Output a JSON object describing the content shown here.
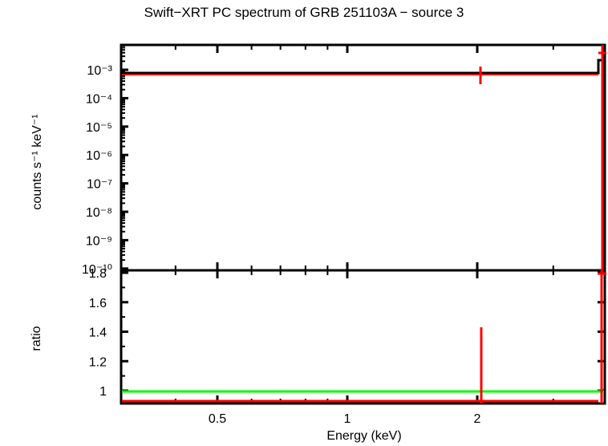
{
  "chart_data": [
    {
      "panel": "top",
      "type": "line",
      "title": "Swift-XRT PC spectrum of GRB 251103A - source 3",
      "xlabel": "Energy (keV)",
      "ylabel": "counts s^-1 keV^-1",
      "xscale": "log",
      "yscale": "log",
      "xlim": [
        0.3,
        10
      ],
      "ylim": [
        1e-10,
        0.008
      ],
      "ytick_labels": [
        "10^-3",
        "10^-4",
        "10^-5",
        "10^-6",
        "10^-7",
        "10^-8",
        "10^-9",
        "10^-10"
      ],
      "ytick_values": [
        0.001,
        0.0001,
        1e-05,
        1e-06,
        1e-07,
        1e-08,
        1e-09,
        1e-10
      ],
      "series": [
        {
          "name": "data",
          "color": "#ff0000",
          "points": [
            {
              "x": 2.0,
              "y": 0.00075,
              "xerr_low": 1.7,
              "xerr_high": 8.9,
              "yerr": [
                0.0005,
                0.0011
              ]
            },
            {
              "x": 9.5,
              "y": 0.004,
              "note": "last bin at plot edge"
            }
          ]
        },
        {
          "name": "model",
          "color": "#000000",
          "step": [
            {
              "x0": 0.3,
              "x1": 9.0,
              "y": 0.00078
            },
            {
              "x0": 9.0,
              "x1": 10.0,
              "y": 0.002
            }
          ]
        }
      ],
      "grid": false,
      "legend": null
    },
    {
      "panel": "bottom",
      "type": "line",
      "xlabel": "Energy (keV)",
      "ylabel": "ratio",
      "xscale": "log",
      "xlim": [
        0.3,
        10
      ],
      "ylim": [
        0.92,
        1.8
      ],
      "ytick_labels": [
        "1",
        "1.2",
        "1.4",
        "1.6",
        "1.8"
      ],
      "ytick_values": [
        1,
        1.2,
        1.4,
        1.6,
        1.8
      ],
      "xtick_labels": [
        "0.5",
        "1",
        "2"
      ],
      "xtick_values": [
        0.5,
        1,
        2
      ],
      "series": [
        {
          "name": "unity",
          "color": "#00ff00",
          "y": 1.0
        },
        {
          "name": "ratio",
          "color": "#ff0000",
          "points": [
            {
              "x": 2.0,
              "y": 0.93,
              "yerr": [
                0.93,
                1.42
              ]
            },
            {
              "x": 9.5,
              "y": 0.93,
              "yerr": [
                0.93,
                1.8
              ]
            }
          ]
        }
      ],
      "grid": false
    }
  ],
  "labels": {
    "title": "Swift−XRT PC spectrum of GRB 251103A − source 3",
    "ylabel_top": "counts s⁻¹ keV⁻¹",
    "ylabel_bottom": "ratio",
    "xlabel": "Energy (keV)",
    "top_yticks": [
      "10⁻³",
      "10⁻⁴",
      "10⁻⁵",
      "10⁻⁶",
      "10⁻⁷",
      "10⁻⁸",
      "10⁻⁹",
      "10⁻¹⁰"
    ],
    "bottom_yticks": [
      "1.8",
      "1.6",
      "1.4",
      "1.2",
      "1"
    ],
    "xticks": [
      "0.5",
      "1",
      "2"
    ]
  },
  "colors": {
    "data": "#ff0000",
    "model": "#000000",
    "unity": "#00ff00",
    "axes": "#000000"
  }
}
